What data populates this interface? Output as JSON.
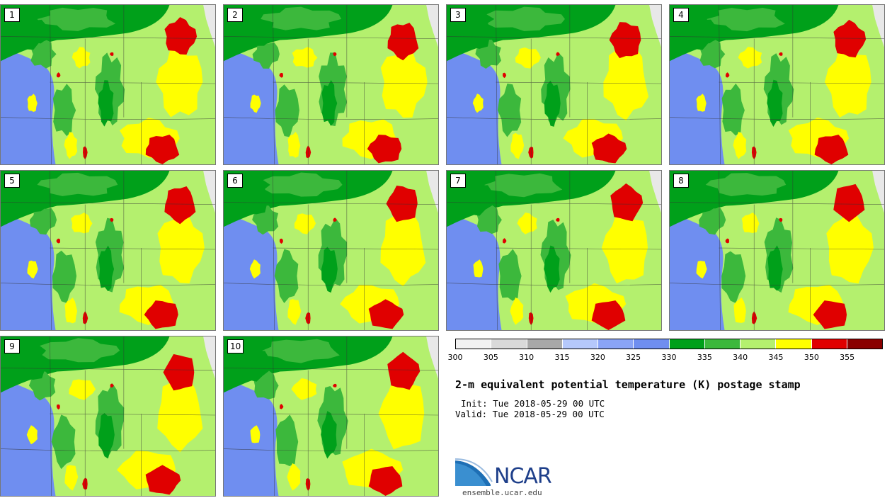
{
  "panels": [
    {
      "label": "1"
    },
    {
      "label": "2"
    },
    {
      "label": "3"
    },
    {
      "label": "4"
    },
    {
      "label": "5"
    },
    {
      "label": "6"
    },
    {
      "label": "7"
    },
    {
      "label": "8"
    },
    {
      "label": "9"
    },
    {
      "label": "10"
    }
  ],
  "colorbar": {
    "colors": [
      "#f2f2f2",
      "#d9d9d9",
      "#a8a8a8",
      "#b5c8fb",
      "#8aa4f6",
      "#6f8ef0",
      "#00a01a",
      "#3cb83c",
      "#b4f06e",
      "#ffff00",
      "#e00000",
      "#8a0000"
    ],
    "ticks": [
      "300",
      "305",
      "310",
      "315",
      "320",
      "325",
      "330",
      "335",
      "340",
      "345",
      "350",
      "355"
    ]
  },
  "title": "2-m equivalent potential temperature (K) postage stamp",
  "init": "Init: Tue 2018-05-29 00 UTC",
  "valid": "Valid: Tue 2018-05-29 00 UTC",
  "logo": {
    "text": "NCAR",
    "url": "ensemble.ucar.edu",
    "color": "#1e3f8a"
  }
}
